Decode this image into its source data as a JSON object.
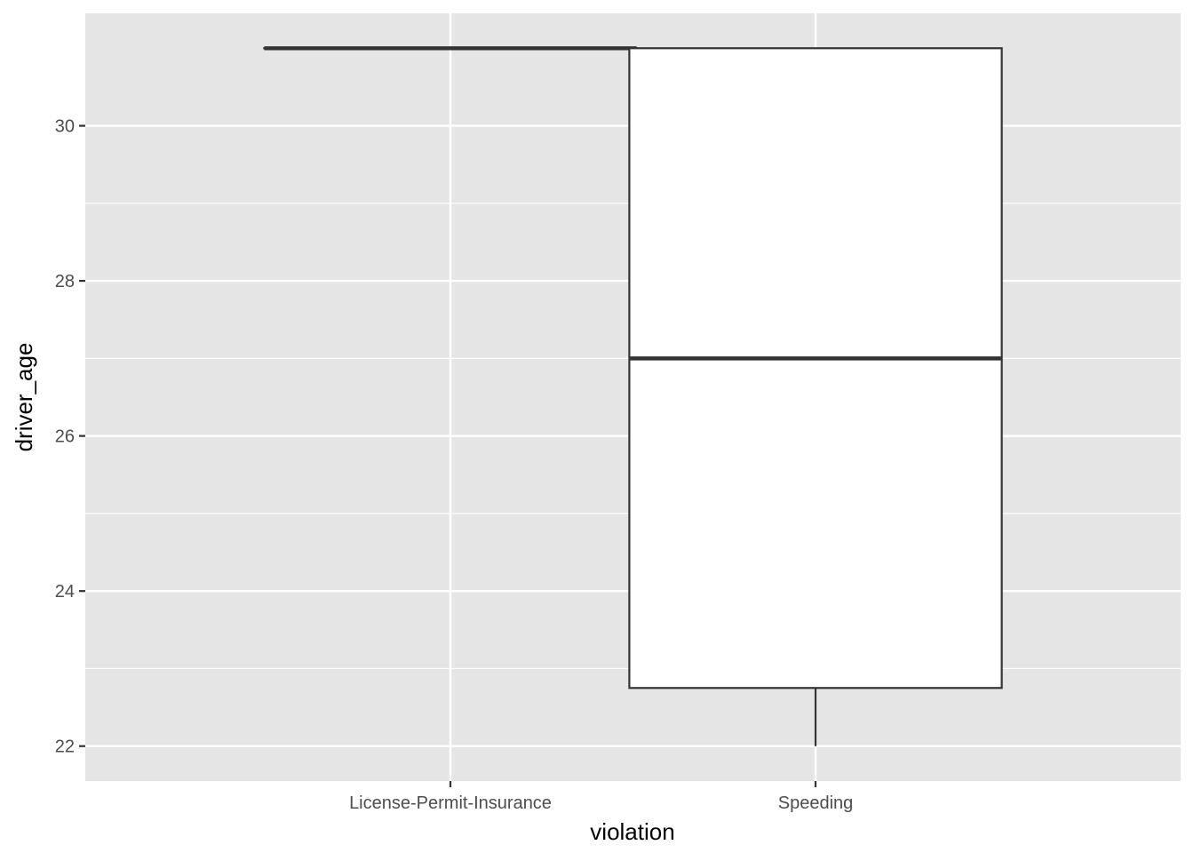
{
  "chart_data": {
    "type": "boxplot",
    "xlabel": "violation",
    "ylabel": "driver_age",
    "categories": [
      "License-Permit-Insurance",
      "Speeding"
    ],
    "ylim": [
      21.55,
      31.45
    ],
    "yticks": [
      22,
      24,
      26,
      28,
      30
    ],
    "grid": true,
    "boxes": [
      {
        "category": "License-Permit-Insurance",
        "min": 31,
        "q1": 31,
        "median": 31,
        "q3": 31,
        "max": 31
      },
      {
        "category": "Speeding",
        "min": 22,
        "q1": 22.75,
        "median": 27,
        "q3": 31,
        "max": 31
      }
    ],
    "colors": {
      "panel": "#e5e5e5",
      "grid": "#ffffff",
      "box_fill": "#ffffff",
      "box_line": "#333333",
      "tick_text": "#4d4d4d",
      "tick_mark": "#333333"
    }
  }
}
